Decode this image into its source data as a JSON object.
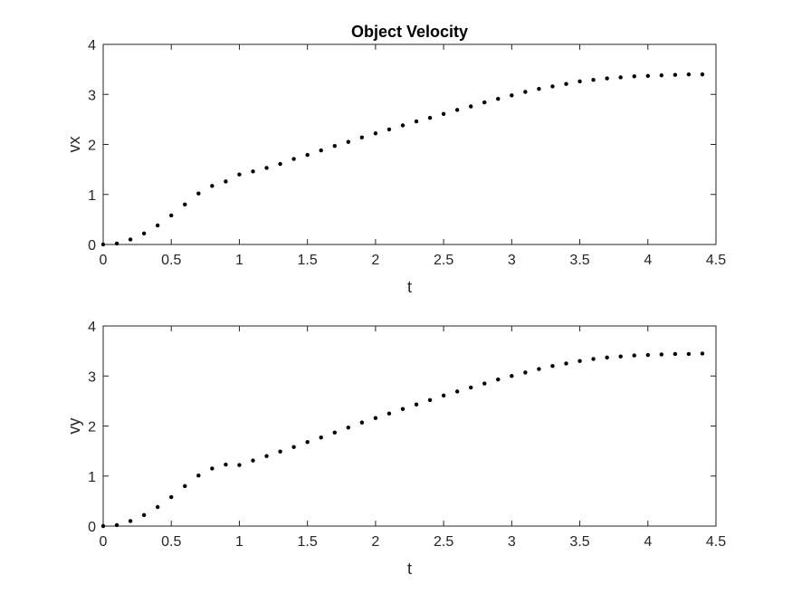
{
  "figure": {
    "background": "#ffffff",
    "axis_color": "#262626",
    "marker_color": "#000000"
  },
  "chart_data": [
    {
      "type": "scatter",
      "title": "Object Velocity",
      "xlabel": "t",
      "ylabel": "vx",
      "xlim": [
        0,
        4.5
      ],
      "ylim": [
        0,
        4
      ],
      "xticks": [
        "0",
        "0.5",
        "1",
        "1.5",
        "2",
        "2.5",
        "3",
        "3.5",
        "4",
        "4.5"
      ],
      "yticks": [
        "0",
        "1",
        "2",
        "3",
        "4"
      ],
      "grid": false,
      "marker": "dot",
      "x": [
        0,
        0.1,
        0.2,
        0.3,
        0.4,
        0.5,
        0.6,
        0.7,
        0.8,
        0.9,
        1.0,
        1.1,
        1.2,
        1.3,
        1.4,
        1.5,
        1.6,
        1.7,
        1.8,
        1.9,
        2.0,
        2.1,
        2.2,
        2.3,
        2.4,
        2.5,
        2.6,
        2.7,
        2.8,
        2.9,
        3.0,
        3.1,
        3.2,
        3.3,
        3.4,
        3.5,
        3.6,
        3.7,
        3.8,
        3.9,
        4.0,
        4.1,
        4.2,
        4.3,
        4.4
      ],
      "y": [
        0,
        0.02,
        0.1,
        0.22,
        0.38,
        0.58,
        0.8,
        1.02,
        1.17,
        1.26,
        1.4,
        1.46,
        1.53,
        1.61,
        1.71,
        1.79,
        1.88,
        1.97,
        2.05,
        2.14,
        2.22,
        2.3,
        2.38,
        2.46,
        2.53,
        2.61,
        2.69,
        2.76,
        2.84,
        2.91,
        2.98,
        3.05,
        3.11,
        3.16,
        3.21,
        3.26,
        3.29,
        3.32,
        3.34,
        3.36,
        3.37,
        3.38,
        3.39,
        3.4,
        3.4
      ]
    },
    {
      "type": "scatter",
      "title": "",
      "xlabel": "t",
      "ylabel": "vy",
      "xlim": [
        0,
        4.5
      ],
      "ylim": [
        0,
        4
      ],
      "xticks": [
        "0",
        "0.5",
        "1",
        "1.5",
        "2",
        "2.5",
        "3",
        "3.5",
        "4",
        "4.5"
      ],
      "yticks": [
        "0",
        "1",
        "2",
        "3",
        "4"
      ],
      "grid": false,
      "marker": "dot",
      "x": [
        0,
        0.1,
        0.2,
        0.3,
        0.4,
        0.5,
        0.6,
        0.7,
        0.8,
        0.9,
        1.0,
        1.1,
        1.2,
        1.3,
        1.4,
        1.5,
        1.6,
        1.7,
        1.8,
        1.9,
        2.0,
        2.1,
        2.2,
        2.3,
        2.4,
        2.5,
        2.6,
        2.7,
        2.8,
        2.9,
        3.0,
        3.1,
        3.2,
        3.3,
        3.4,
        3.5,
        3.6,
        3.7,
        3.8,
        3.9,
        4.0,
        4.1,
        4.2,
        4.3,
        4.4
      ],
      "y": [
        0,
        0.02,
        0.1,
        0.22,
        0.38,
        0.58,
        0.8,
        1.01,
        1.15,
        1.23,
        1.22,
        1.31,
        1.4,
        1.49,
        1.58,
        1.68,
        1.77,
        1.87,
        1.97,
        2.07,
        2.16,
        2.25,
        2.34,
        2.43,
        2.52,
        2.61,
        2.69,
        2.77,
        2.85,
        2.93,
        3.0,
        3.07,
        3.14,
        3.2,
        3.25,
        3.3,
        3.34,
        3.37,
        3.39,
        3.41,
        3.42,
        3.43,
        3.44,
        3.44,
        3.45
      ]
    }
  ]
}
